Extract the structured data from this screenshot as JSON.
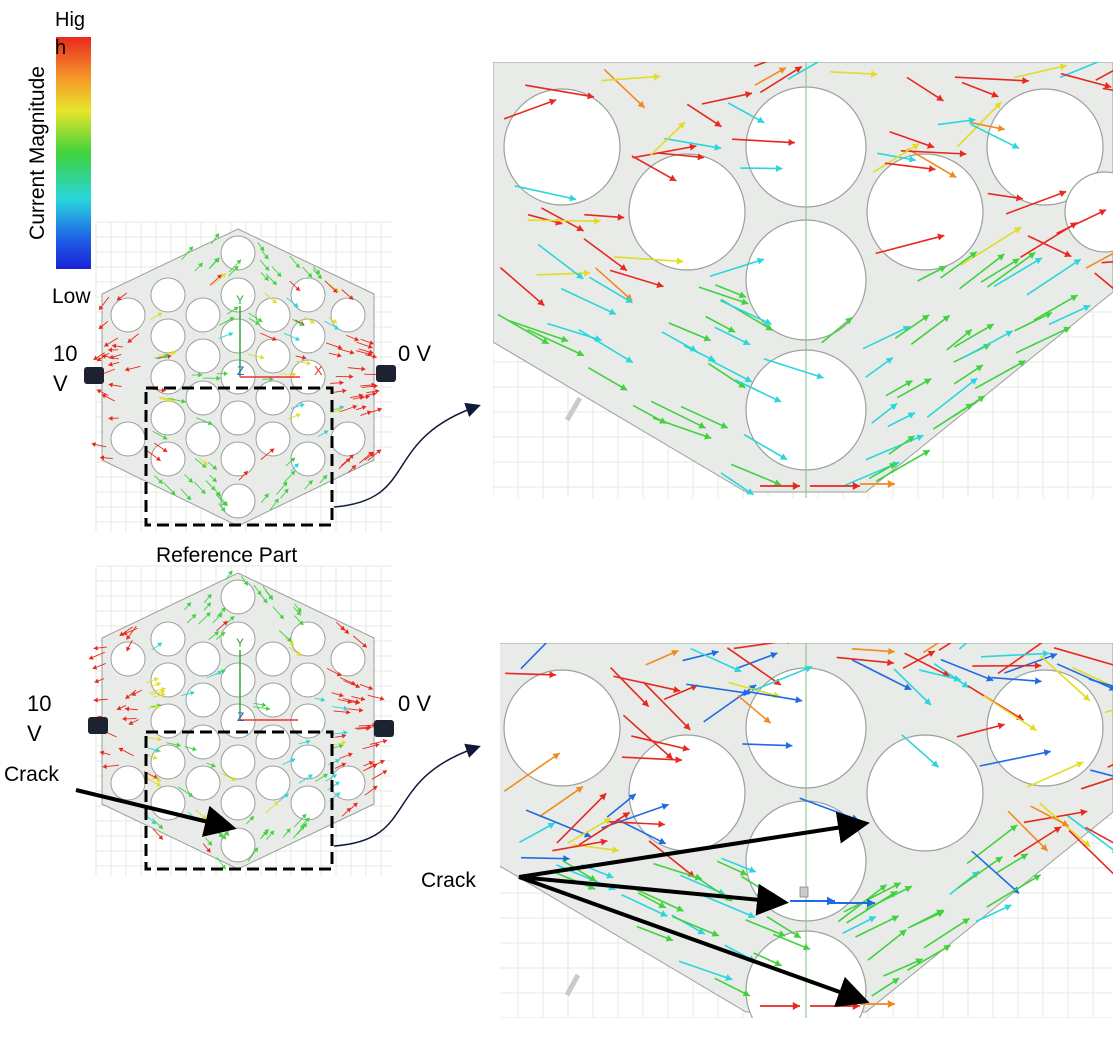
{
  "legend": {
    "title": "Current Magnitude",
    "high_label": "Hig\nh",
    "low_label": "Low",
    "gradient_colors": [
      "#e8281e",
      "#f59a2a",
      "#e6e62a",
      "#3fd23c",
      "#2ad6dc",
      "#1e5ae6",
      "#1a23d6"
    ]
  },
  "reference": {
    "caption": "Reference Part",
    "left_voltage": "10\nV",
    "right_voltage": "0 V"
  },
  "cracked": {
    "left_voltage": "10\nV",
    "right_voltage": "0 V",
    "crack_label": "Crack",
    "zoom_crack_label": "Crack"
  },
  "axes": {
    "y": "Y",
    "x": "X",
    "z": "Z"
  },
  "colors": {
    "part_fill": "#e9ebe8",
    "part_stroke": "#9aa09a",
    "connector": "#1c2230",
    "arrow_black": "#000000",
    "red": "#e8281e",
    "orange": "#f08a1e",
    "yellow": "#e2dc24",
    "green": "#3fd23c",
    "cyan": "#2ad6dc",
    "blue": "#1e6ae6"
  }
}
